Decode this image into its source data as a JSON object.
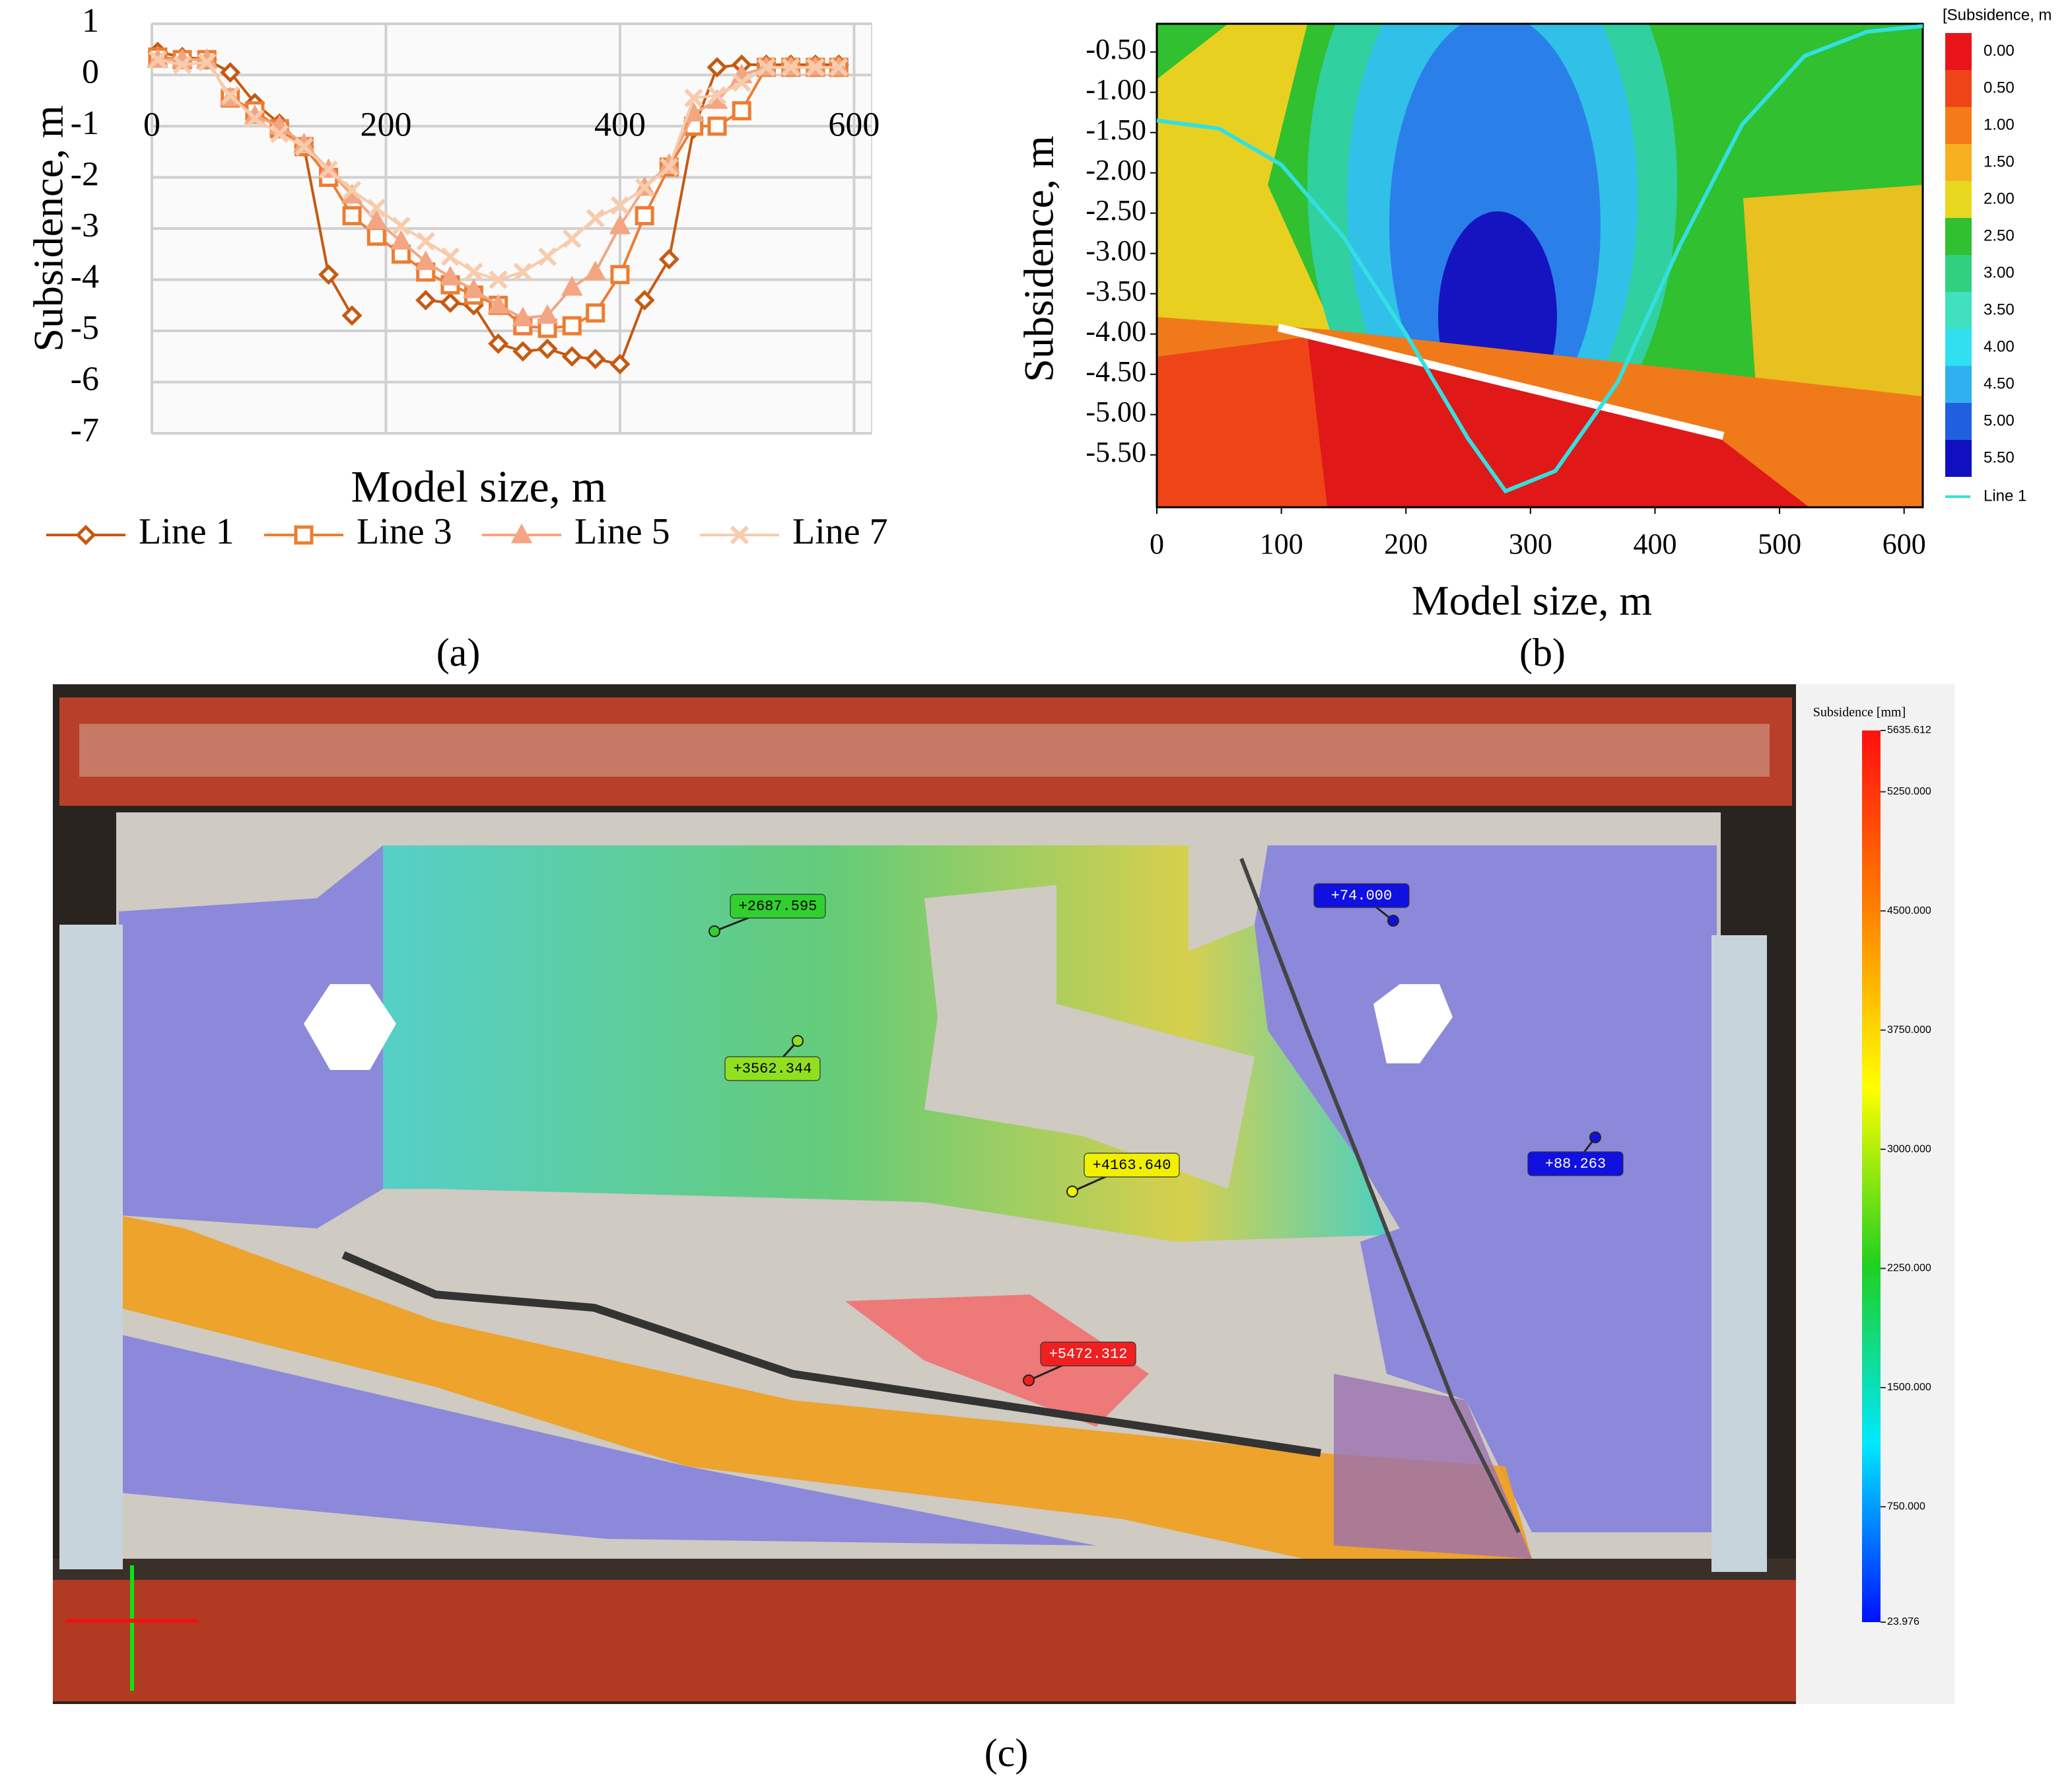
{
  "chart_data": [
    {
      "type": "line",
      "label": "(a)",
      "ylabel": "Subsidence, m",
      "xlabel": "Model size, m",
      "xlim": [
        0,
        615
      ],
      "ylim": [
        -7,
        1
      ],
      "xticks": [
        0,
        200,
        400,
        600
      ],
      "yticks": [
        1,
        0,
        -1,
        -2,
        -3,
        -4,
        -5,
        -6,
        -7
      ],
      "grid": true,
      "x": [
        5,
        26,
        47,
        67,
        88,
        109,
        130,
        151,
        171,
        192,
        213,
        234,
        255,
        275,
        296,
        317,
        338,
        359,
        379,
        400,
        421,
        442,
        463,
        483,
        504,
        525,
        546,
        567,
        587
      ],
      "series": [
        {
          "name": "Line 1",
          "color": "#c55a11",
          "marker": "diamond",
          "values": [
            0.45,
            0.35,
            0.3,
            0.05,
            -0.55,
            -0.95,
            -1.4,
            -3.9,
            -4.7,
            null,
            null,
            -4.4,
            -4.45,
            -4.5,
            -5.25,
            -5.4,
            -5.35,
            -5.5,
            -5.55,
            -5.65,
            -4.4,
            -3.6,
            -1.05,
            0.15,
            0.2,
            0.2,
            0.2,
            0.2,
            0.2
          ]
        },
        {
          "name": "Line 3",
          "color": "#ed7d31",
          "marker": "square",
          "values": [
            0.35,
            0.3,
            0.3,
            -0.45,
            -0.7,
            -1.05,
            -1.4,
            -2.0,
            -2.75,
            -3.15,
            -3.5,
            -3.85,
            -4.1,
            -4.3,
            -4.5,
            -4.9,
            -4.95,
            -4.9,
            -4.65,
            -3.9,
            -2.75,
            -1.8,
            -1.0,
            -1.0,
            -0.7,
            0.15,
            0.15,
            0.15,
            0.15
          ]
        },
        {
          "name": "Line 5",
          "color": "#f4a582",
          "marker": "triangle",
          "values": [
            0.3,
            0.3,
            0.3,
            -0.45,
            -0.8,
            -1.0,
            -1.35,
            -1.85,
            -2.35,
            -2.85,
            -3.25,
            -3.65,
            -3.95,
            -4.2,
            -4.5,
            -4.75,
            -4.7,
            -4.15,
            -3.85,
            -2.95,
            -2.2,
            -1.75,
            -0.75,
            -0.5,
            0.0,
            0.15,
            0.15,
            0.15,
            0.15
          ]
        },
        {
          "name": "Line 7",
          "color": "#f8cbad",
          "marker": "x",
          "values": [
            0.3,
            0.2,
            0.25,
            -0.4,
            -0.85,
            -1.15,
            -1.4,
            -1.85,
            -2.25,
            -2.6,
            -2.95,
            -3.25,
            -3.55,
            -3.85,
            -4.0,
            -3.85,
            -3.55,
            -3.2,
            -2.8,
            -2.55,
            -2.2,
            -1.8,
            -0.45,
            -0.4,
            -0.15,
            0.15,
            0.15,
            0.15,
            0.15
          ]
        }
      ],
      "legend": "bottom"
    },
    {
      "type": "contour",
      "label": "(b)",
      "ylabel": "Subsidence, m",
      "xlabel": "Model size, m",
      "xlim": [
        0,
        615
      ],
      "ylim": [
        -6.15,
        -0.15
      ],
      "xticks": [
        0,
        100,
        200,
        300,
        400,
        500,
        600
      ],
      "yticks": [
        {
          "value": -0.5,
          "label": "-0.50"
        },
        {
          "value": -1,
          "label": "-1.00"
        },
        {
          "value": -1.5,
          "label": "-1.50"
        },
        {
          "value": -2,
          "label": "-2.00"
        },
        {
          "value": -2.5,
          "label": "-2.50"
        },
        {
          "value": -3,
          "label": "-3.00"
        },
        {
          "value": -3.5,
          "label": "-3.50"
        },
        {
          "value": -4,
          "label": "-4.00"
        },
        {
          "value": -4.5,
          "label": "-4.50"
        },
        {
          "value": -5,
          "label": "-5.00"
        },
        {
          "value": -5.5,
          "label": "-5.50"
        }
      ],
      "series": [
        {
          "name": "Line 1",
          "color": "#33e0e0",
          "x": [
            0,
            50,
            100,
            150,
            200,
            250,
            280,
            320,
            370,
            420,
            470,
            520,
            570,
            600,
            615
          ],
          "values": [
            -1.35,
            -1.45,
            -1.9,
            -2.8,
            -4.0,
            -5.3,
            -5.95,
            -5.7,
            -4.6,
            -2.9,
            -1.4,
            -0.55,
            -0.25,
            -0.2,
            -0.18
          ]
        }
      ],
      "colorbar": {
        "title": "[Subsidence, m",
        "levels": [
          {
            "value": 0,
            "label": "0.00"
          },
          {
            "value": 0.5,
            "label": "0.50"
          },
          {
            "value": 1,
            "label": "1.00"
          },
          {
            "value": 1.5,
            "label": "1.50"
          },
          {
            "value": 2,
            "label": "2.00"
          },
          {
            "value": 2.5,
            "label": "2.50"
          },
          {
            "value": 3,
            "label": "3.00"
          },
          {
            "value": 3.5,
            "label": "3.50"
          },
          {
            "value": 4,
            "label": "4.00"
          },
          {
            "value": 4.5,
            "label": "4.50"
          },
          {
            "value": 5,
            "label": "5.00"
          },
          {
            "value": 5.5,
            "label": "5.50"
          }
        ],
        "colors": [
          "#e8141a",
          "#ee4418",
          "#f47a1a",
          "#f6b020",
          "#e8d820",
          "#30c030",
          "#30d080",
          "#40e0c0",
          "#30e0f0",
          "#30b0f0",
          "#2060e0",
          "#1010c0"
        ]
      }
    },
    {
      "type": "photo",
      "label": "(c)",
      "colorbar": {
        "title": "Subsidence [mm]",
        "lim": [
          23.976,
          5635.612
        ],
        "ticks": [
          5635.612,
          {
            "value": 5250,
            "label": "5250.000"
          },
          {
            "value": 4500,
            "label": "4500.000"
          },
          {
            "value": 3750,
            "label": "3750.000"
          },
          {
            "value": 3000,
            "label": "3000.000"
          },
          {
            "value": 2250,
            "label": "2250.000"
          },
          {
            "value": 1500,
            "label": "1500.000"
          },
          {
            "value": 750,
            "label": "750.000"
          },
          23.976
        ],
        "colors": [
          "#ff1010",
          "#ff8000",
          "#ffff00",
          "#20d020",
          "#00e8ff",
          "#0010ff"
        ]
      },
      "points": [
        {
          "value": 2687.595,
          "label": "+2687.595",
          "color": "#30d030",
          "text_color": "#000000"
        },
        {
          "value": 3562.344,
          "label": "+3562.344",
          "color": "#90e020",
          "text_color": "#000000"
        },
        {
          "value": 4163.64,
          "label": "+4163.640",
          "color": "#f0f000",
          "text_color": "#000000"
        },
        {
          "value": 5472.312,
          "label": "+5472.312",
          "color": "#f02020",
          "text_color": "#ffffff"
        },
        {
          "value": 74,
          "label": "+74.000",
          "color": "#1010e0",
          "text_color": "#ffffff"
        },
        {
          "value": 88.263,
          "label": "+88.263",
          "color": "#1010e0",
          "text_color": "#ffffff"
        }
      ]
    }
  ]
}
